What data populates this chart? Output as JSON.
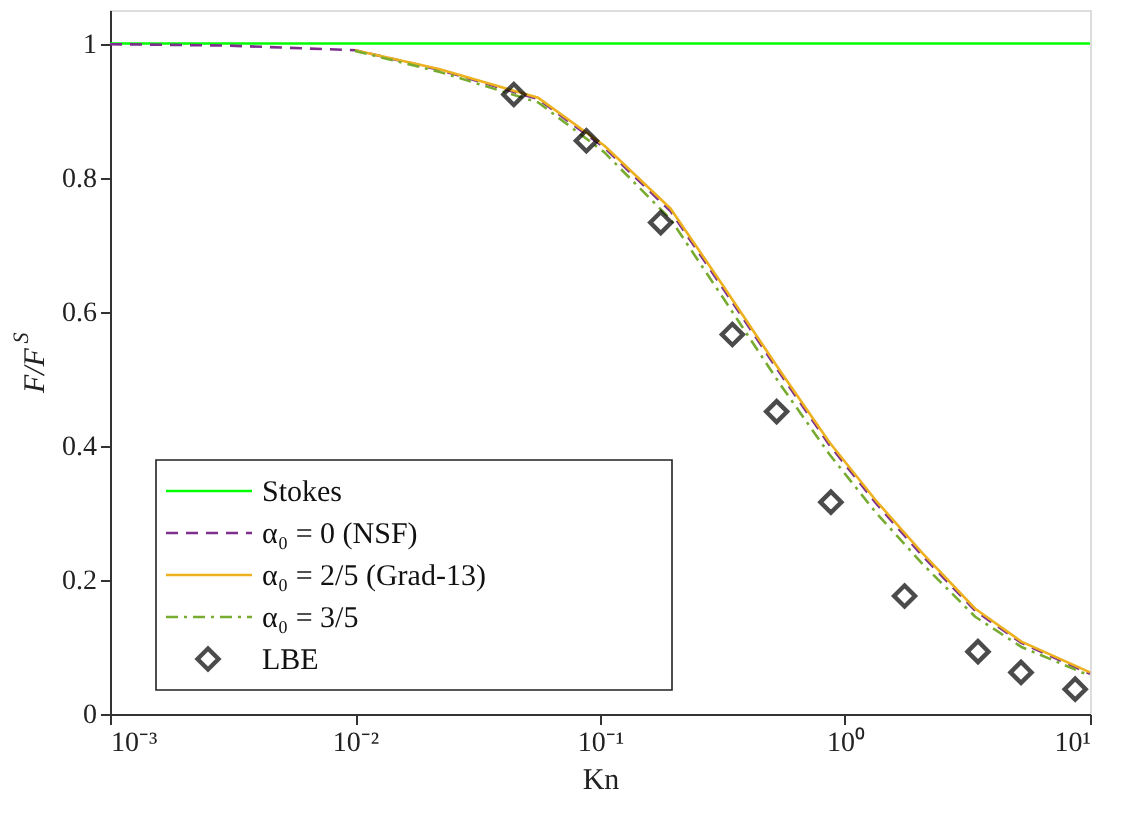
{
  "chart_data": {
    "type": "line",
    "xlabel": "Kn",
    "ylabel": "F/F$^{S}$",
    "log": "x",
    "xlim": [
      0.001,
      10
    ],
    "xticks": [
      {
        "value": 0.001,
        "label": "10⁻³"
      },
      {
        "value": 0.01,
        "label": "10⁻²"
      },
      {
        "value": 0.1,
        "label": "10⁻¹"
      },
      {
        "value": 1,
        "label": "10⁰"
      },
      {
        "value": 10,
        "label": "10¹"
      }
    ],
    "ylim": [
      0,
      1.05
    ],
    "yticks": [
      0,
      0.2,
      0.4,
      0.6,
      0.8,
      1
    ],
    "grid": false,
    "legend": "bottom left",
    "series": [
      {
        "name": "Stokes",
        "color": "#00ff00",
        "line_style": "solid",
        "x": [
          0.001,
          10
        ],
        "values": [
          1,
          1
        ]
      },
      {
        "name": "α₀ = 0 (NSF)",
        "color": "#7e2f8e",
        "line_style": "dashed",
        "x": [
          0.001,
          0.003,
          0.01,
          0.022,
          0.056,
          0.104,
          0.194,
          0.319,
          0.543,
          0.865,
          1.34,
          2.07,
          3.4,
          5.25,
          10
        ],
        "values": [
          0.999,
          0.997,
          0.99,
          0.961,
          0.917,
          0.845,
          0.75,
          0.634,
          0.508,
          0.401,
          0.314,
          0.236,
          0.154,
          0.106,
          0.06
        ]
      },
      {
        "name": "α₀ = 2/5 (Grad-13)",
        "color": "#edb120",
        "line_style": "solid",
        "x": [
          0.01,
          0.022,
          0.056,
          0.104,
          0.194,
          0.319,
          0.543,
          0.865,
          1.34,
          2.07,
          3.4,
          5.25,
          10
        ],
        "values": [
          0.99,
          0.962,
          0.919,
          0.848,
          0.754,
          0.638,
          0.512,
          0.405,
          0.318,
          0.24,
          0.157,
          0.108,
          0.062
        ]
      },
      {
        "name": "α₀ = 3/5",
        "color": "#77ac30",
        "line_style": "dashdot",
        "x": [
          0.01,
          0.022,
          0.056,
          0.104,
          0.194,
          0.319,
          0.543,
          0.865,
          1.34,
          2.07,
          3.4,
          5.25,
          10
        ],
        "values": [
          0.989,
          0.958,
          0.912,
          0.838,
          0.738,
          0.62,
          0.492,
          0.387,
          0.3,
          0.224,
          0.145,
          0.1,
          0.057
        ]
      },
      {
        "name": "LBE",
        "type": "scatter",
        "marker": "diamond",
        "color": "#000000",
        "x": [
          0.0445,
          0.088,
          0.177,
          0.347,
          0.526,
          0.876,
          1.75,
          3.49,
          5.23,
          8.7
        ],
        "values": [
          0.924,
          0.855,
          0.733,
          0.566,
          0.451,
          0.316,
          0.176,
          0.093,
          0.062,
          0.037
        ]
      }
    ]
  }
}
